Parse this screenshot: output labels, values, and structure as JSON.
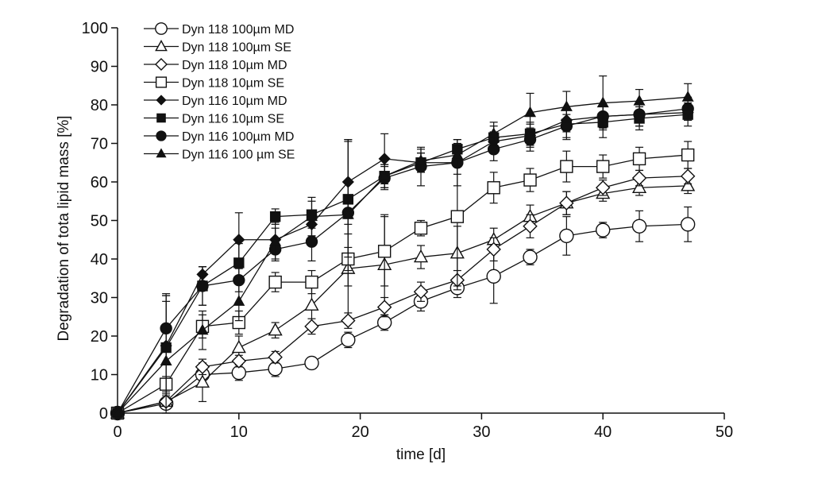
{
  "chart_data": {
    "type": "line",
    "title": "",
    "xlabel": "time [d]",
    "ylabel": "Degradation of tota lipid mass [%]",
    "xlim": [
      0,
      50
    ],
    "ylim": [
      0,
      100
    ],
    "xticks": [
      0,
      10,
      20,
      30,
      40,
      50
    ],
    "yticks": [
      0,
      10,
      20,
      30,
      40,
      50,
      60,
      70,
      80,
      90,
      100
    ],
    "grid": false,
    "legend_position": "top-left",
    "x": [
      0,
      4,
      7,
      10,
      13,
      16,
      19,
      22,
      25,
      28,
      31,
      34,
      37,
      40,
      43,
      47
    ],
    "series": [
      {
        "name": "Dyn 118 100µm MD",
        "marker": "circle-open",
        "values": [
          0,
          2.5,
          10,
          10.5,
          11.5,
          13,
          19,
          23.5,
          29,
          32.5,
          35.5,
          40.5,
          46,
          47.5,
          48.5,
          49
        ],
        "errors": [
          0,
          1,
          3,
          2,
          2,
          1.5,
          2,
          2,
          2.5,
          2.5,
          7,
          2,
          5,
          2,
          4,
          4.5
        ]
      },
      {
        "name": "Dyn 118 100µm SE",
        "marker": "triangle-open",
        "values": [
          0,
          3,
          8,
          17,
          21.5,
          28,
          37.5,
          38.5,
          40.5,
          41.5,
          45,
          51,
          54.5,
          57,
          58.5,
          59
        ],
        "errors": [
          0,
          1,
          5,
          3,
          2,
          5,
          13,
          13,
          3,
          7,
          3,
          3,
          3,
          2,
          2,
          2
        ]
      },
      {
        "name": "Dyn 118 10µm MD",
        "marker": "diamond-open",
        "values": [
          0,
          3,
          12,
          13.5,
          14.5,
          22.5,
          24,
          27.5,
          31.5,
          34.5,
          42.5,
          48.5,
          54.5,
          58.5,
          61,
          61.5
        ],
        "errors": [
          0,
          1,
          2,
          1.5,
          1.5,
          2,
          2,
          2.5,
          2.5,
          2.5,
          3,
          3,
          3,
          2,
          2,
          2
        ]
      },
      {
        "name": "Dyn 118 10µm SE",
        "marker": "square-open",
        "values": [
          0,
          7.5,
          22.5,
          23.5,
          34,
          34,
          40,
          42,
          48,
          51,
          58.5,
          60.5,
          64,
          64,
          66,
          67
        ],
        "errors": [
          0,
          2,
          3,
          3,
          2.5,
          3,
          3,
          9,
          2,
          18,
          4,
          3,
          4,
          3,
          3,
          3.5
        ]
      },
      {
        "name": "Dyn 116 10µm MD",
        "marker": "diamond-filled",
        "values": [
          0,
          17.5,
          36,
          45,
          45,
          49,
          60,
          66,
          65,
          65,
          70.5,
          72,
          76,
          77,
          77.5,
          78
        ],
        "errors": [
          0,
          13,
          2,
          7,
          3,
          3,
          11,
          6.5,
          2.5,
          3,
          2.5,
          3,
          3,
          3,
          3,
          2
        ]
      },
      {
        "name": "Dyn 116 10µm SE",
        "marker": "square-filled",
        "values": [
          0,
          17,
          33,
          39,
          51,
          51.5,
          55.5,
          61.5,
          65,
          68.5,
          71.5,
          72.5,
          75,
          75.5,
          76.5,
          77.5
        ],
        "errors": [
          0,
          12,
          5,
          5,
          2,
          3.5,
          15,
          3,
          2.5,
          2.5,
          3,
          3,
          4,
          4,
          3,
          3
        ]
      },
      {
        "name": "Dyn 116 100µm MD",
        "marker": "circle-filled",
        "values": [
          0,
          22,
          33,
          34.5,
          42.5,
          44.5,
          52,
          61,
          64,
          65,
          68.5,
          71,
          74.5,
          77,
          77.5,
          79
        ],
        "errors": [
          0,
          9,
          5,
          3,
          2.5,
          5,
          19,
          3,
          5,
          6,
          3,
          3,
          3,
          3,
          3,
          3
        ]
      },
      {
        "name": "Dyn 116 100 µm SE",
        "marker": "triangle-filled",
        "values": [
          0,
          13.5,
          21.5,
          29,
          44.5,
          51,
          51.5,
          61.5,
          65.5,
          67,
          72.5,
          78,
          79.5,
          80.5,
          81,
          82
        ],
        "errors": [
          0,
          17,
          5,
          5,
          5,
          5,
          5,
          3,
          3,
          3,
          3,
          5,
          4,
          7,
          3,
          3.5
        ]
      }
    ]
  }
}
